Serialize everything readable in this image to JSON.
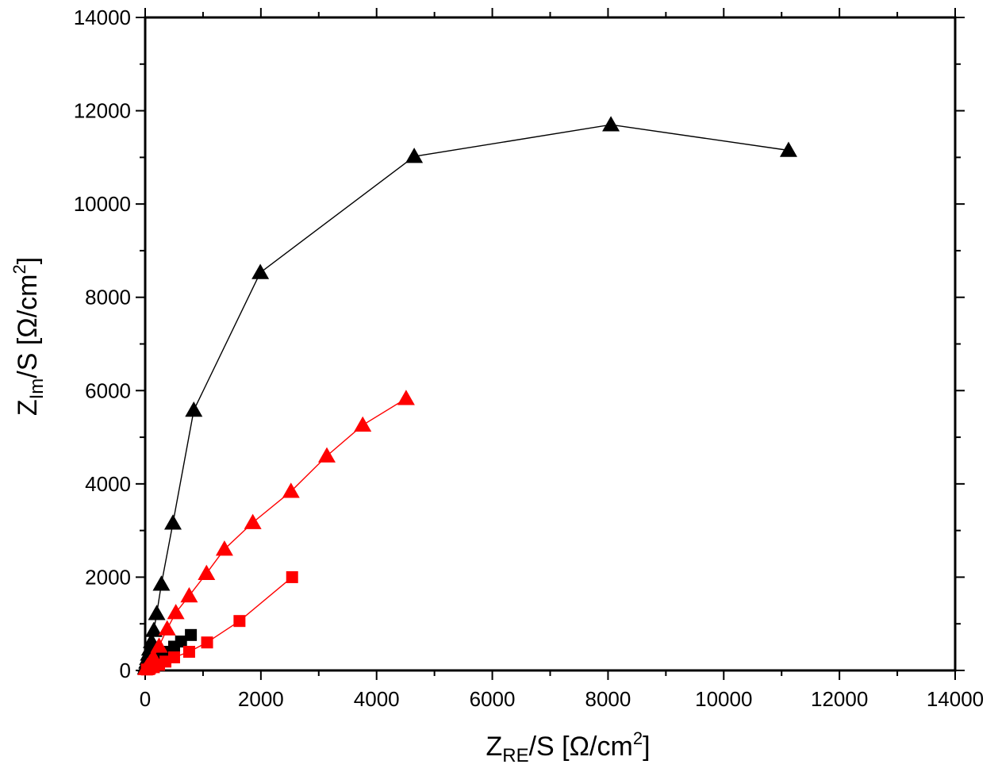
{
  "chart_data": {
    "type": "scatter",
    "title": "",
    "xlabel": {
      "main": "Z",
      "sub": "RE",
      "rest": "/S [Ω/cm",
      "sup": "2",
      "end": "]"
    },
    "ylabel": {
      "main": "Z",
      "sub": "Im",
      "rest": "/S [Ω/cm",
      "sup": "2",
      "end": "]"
    },
    "xlim": [
      0,
      14000
    ],
    "ylim": [
      0,
      14000
    ],
    "xticks": [
      "0",
      "2000",
      "4000",
      "6000",
      "8000",
      "10000",
      "12000",
      "14000"
    ],
    "yticks": [
      "0",
      "2000",
      "4000",
      "6000",
      "8000",
      "10000",
      "12000",
      "14000"
    ],
    "grid": false,
    "series": [
      {
        "marker": "triangle",
        "color": "#000000",
        "points": [
          [
            10,
            60
          ],
          [
            20,
            110
          ],
          [
            30,
            180
          ],
          [
            45,
            260
          ],
          [
            60,
            350
          ],
          [
            80,
            460
          ],
          [
            110,
            620
          ],
          [
            150,
            860
          ],
          [
            200,
            1220
          ],
          [
            280,
            1850
          ],
          [
            480,
            3160
          ],
          [
            840,
            5580
          ],
          [
            1990,
            8530
          ],
          [
            4650,
            11020
          ],
          [
            8050,
            11700
          ],
          [
            11120,
            11150
          ]
        ]
      },
      {
        "marker": "square",
        "color": "#000000",
        "points": [
          [
            20,
            40
          ],
          [
            50,
            70
          ],
          [
            90,
            110
          ],
          [
            140,
            160
          ],
          [
            200,
            220
          ],
          [
            280,
            300
          ],
          [
            380,
            400
          ],
          [
            500,
            510
          ],
          [
            620,
            620
          ],
          [
            790,
            760
          ]
        ]
      },
      {
        "marker": "triangle",
        "color": "#ff0000",
        "points": [
          [
            15,
            40
          ],
          [
            40,
            90
          ],
          [
            80,
            160
          ],
          [
            140,
            280
          ],
          [
            240,
            520
          ],
          [
            380,
            890
          ],
          [
            530,
            1240
          ],
          [
            760,
            1600
          ],
          [
            1060,
            2080
          ],
          [
            1370,
            2600
          ],
          [
            1860,
            3170
          ],
          [
            2520,
            3840
          ],
          [
            3140,
            4600
          ],
          [
            3760,
            5260
          ],
          [
            4510,
            5830
          ]
        ]
      },
      {
        "marker": "square",
        "color": "#ff0000",
        "points": [
          [
            30,
            20
          ],
          [
            80,
            40
          ],
          [
            150,
            70
          ],
          [
            240,
            120
          ],
          [
            350,
            190
          ],
          [
            500,
            280
          ],
          [
            760,
            400
          ],
          [
            1070,
            600
          ],
          [
            1630,
            1060
          ],
          [
            2540,
            2000
          ]
        ]
      }
    ]
  }
}
